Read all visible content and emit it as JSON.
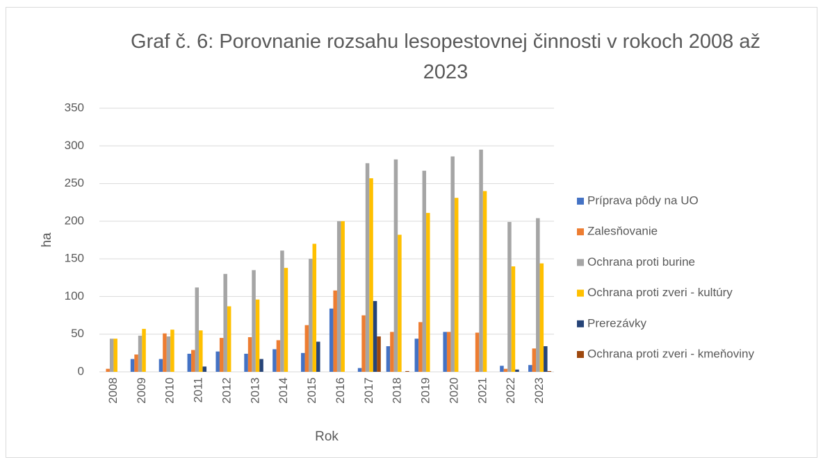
{
  "chart_data": {
    "type": "bar",
    "title": "Graf č. 6: Porovnanie rozsahu lesopestovnej činnosti v rokoch 2008 až 2023",
    "x_label": "Rok",
    "y_label": "ha",
    "categories": [
      "2008",
      "2009",
      "2010",
      "2011",
      "2012",
      "2013",
      "2014",
      "2015",
      "2016",
      "2017",
      "2018",
      "2019",
      "2020",
      "2021",
      "2022",
      "2023"
    ],
    "series": [
      {
        "name": "Príprava pôdy na UO",
        "color": "#4472c4",
        "values": [
          0,
          17,
          17,
          24,
          27,
          24,
          30,
          25,
          84,
          5,
          34,
          44,
          53,
          0,
          8,
          9
        ]
      },
      {
        "name": "Zalesňovanie",
        "color": "#ed7d31",
        "values": [
          4,
          23,
          51,
          29,
          45,
          46,
          42,
          62,
          108,
          75,
          53,
          66,
          53,
          52,
          4,
          31
        ]
      },
      {
        "name": "Ochrana proti burine",
        "color": "#a5a5a5",
        "values": [
          44,
          48,
          47,
          112,
          130,
          135,
          161,
          150,
          200,
          277,
          282,
          267,
          286,
          295,
          199,
          204
        ]
      },
      {
        "name": "Ochrana proti zveri - kultúry",
        "color": "#ffc000",
        "values": [
          44,
          57,
          56,
          55,
          87,
          96,
          138,
          170,
          200,
          257,
          182,
          211,
          231,
          240,
          140,
          144
        ]
      },
      {
        "name": "Prerezávky",
        "color": "#264478",
        "values": [
          0,
          0,
          0,
          7,
          0,
          17,
          0,
          40,
          0,
          94,
          0,
          0,
          0,
          0,
          3,
          34
        ]
      },
      {
        "name": "Ochrana proti zveri - kmeňoviny",
        "color": "#9e480e",
        "values": [
          0,
          0,
          0,
          0,
          0,
          0,
          0,
          0,
          0,
          47,
          1,
          0,
          0,
          0,
          0,
          1
        ]
      }
    ],
    "ylim": [
      0,
      350
    ],
    "yticks": [
      0,
      50,
      100,
      150,
      200,
      250,
      300,
      350
    ],
    "grid": true,
    "legend": "right"
  }
}
